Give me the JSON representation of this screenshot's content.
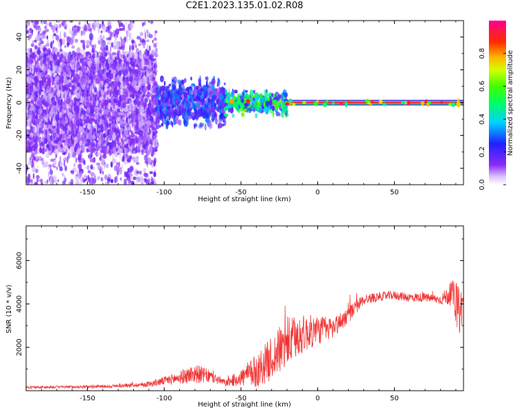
{
  "title": "C2E1.2023.135.01.02.R08",
  "chart_data": [
    {
      "type": "heatmap",
      "title": "C2E1.2023.135.01.02.R08",
      "xlabel": "Height of straight line (km)",
      "ylabel": "Frequency (Hz)",
      "xlim": [
        -190,
        95
      ],
      "ylim": [
        -50,
        50
      ],
      "x_ticks": [
        "-150",
        "-100",
        "-50",
        "0",
        "50"
      ],
      "y_ticks": [
        "-40",
        "-20",
        "0",
        "20",
        "40"
      ],
      "colorbar": {
        "label": "Normalized spectral amplitude",
        "range": [
          0,
          1
        ],
        "ticks": [
          "0.0",
          "0.2",
          "0.4",
          "0.6",
          "0.8"
        ],
        "colormap": "rainbow (white-violet-blue-cyan-green-yellow-red-magenta)"
      },
      "description_series": [
        {
          "x_range": [
            -190,
            -105
          ],
          "freq_spread": [
            -50,
            50
          ],
          "amplitude": 0.12
        },
        {
          "x_range": [
            -105,
            -60
          ],
          "freq_spread": [
            -15,
            15
          ],
          "amplitude": 0.25
        },
        {
          "x_range": [
            -60,
            -20
          ],
          "freq_spread": [
            -8,
            8
          ],
          "amplitude": 0.45
        },
        {
          "x_range": [
            -20,
            95
          ],
          "freq_spread": [
            -1,
            1
          ],
          "amplitude": 0.85
        }
      ],
      "grid": false
    },
    {
      "type": "line",
      "xlabel": "Height of straight line (km)",
      "ylabel": "SNR (10 * v/v)",
      "xlim": [
        -190,
        95
      ],
      "ylim": [
        0,
        7600
      ],
      "x_ticks": [
        "-150",
        "-100",
        "-50",
        "0",
        "50"
      ],
      "y_ticks": [
        "2000",
        "4000",
        "6000"
      ],
      "color": "#f03030",
      "envelope": {
        "x": [
          -190,
          -170,
          -150,
          -130,
          -120,
          -110,
          -100,
          -90,
          -80,
          -70,
          -60,
          -50,
          -40,
          -30,
          -20,
          -10,
          0,
          10,
          20,
          30,
          40,
          50,
          60,
          70,
          80,
          88,
          92,
          95
        ],
        "y": [
          150,
          170,
          180,
          220,
          260,
          300,
          450,
          600,
          800,
          650,
          350,
          600,
          900,
          1500,
          2200,
          2600,
          2800,
          2900,
          3500,
          4200,
          4350,
          4400,
          4300,
          4300,
          4200,
          4500,
          3600,
          4100
        ],
        "spread": [
          60,
          60,
          70,
          80,
          100,
          130,
          200,
          300,
          450,
          300,
          150,
          400,
          800,
          1000,
          1200,
          900,
          700,
          500,
          400,
          250,
          200,
          200,
          220,
          200,
          220,
          600,
          1200,
          700
        ]
      },
      "grid": false
    }
  ]
}
